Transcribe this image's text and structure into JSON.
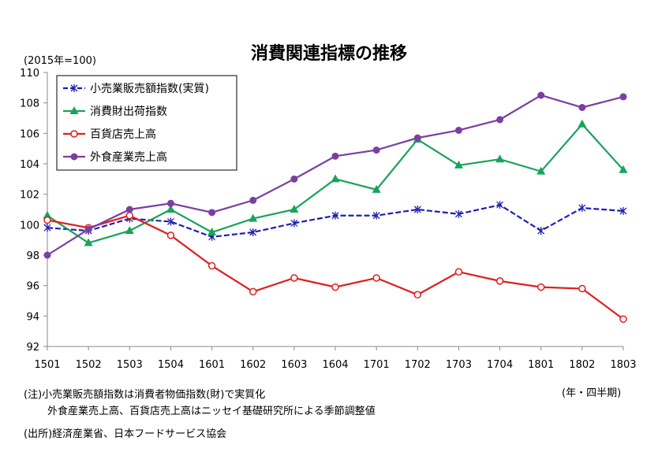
{
  "chart_data": {
    "type": "line",
    "title": "消費関連指標の推移",
    "unit_label": "(2015年=100)",
    "xlabel": "(年・四半期)",
    "ylabel": "",
    "ylim": [
      92,
      110
    ],
    "ytick_step": 2,
    "categories": [
      "1501",
      "1502",
      "1503",
      "1504",
      "1601",
      "1602",
      "1603",
      "1604",
      "1701",
      "1702",
      "1703",
      "1704",
      "1801",
      "1802",
      "1803"
    ],
    "grid": false,
    "legend_position": "top-left",
    "series": [
      {
        "name": "小売業販売額指数(実質)",
        "color": "#1f1fb4",
        "marker": "x",
        "values": [
          99.8,
          99.6,
          100.4,
          100.2,
          99.2,
          99.5,
          100.1,
          100.6,
          100.6,
          101.0,
          100.7,
          101.3,
          99.6,
          101.1,
          100.9
        ]
      },
      {
        "name": "消費財出荷指数",
        "color": "#1aa35a",
        "marker": "triangle",
        "values": [
          100.6,
          98.8,
          99.6,
          101.0,
          99.5,
          100.4,
          101.0,
          103.0,
          102.3,
          105.6,
          103.9,
          104.3,
          103.5,
          106.6,
          103.6
        ]
      },
      {
        "name": "百貨店売上高",
        "color": "#e01e1e",
        "marker": "circle-open",
        "values": [
          100.3,
          99.8,
          100.6,
          99.3,
          97.3,
          95.6,
          96.5,
          95.9,
          96.5,
          95.4,
          96.9,
          96.3,
          95.9,
          95.8,
          93.8
        ]
      },
      {
        "name": "外食産業売上高",
        "color": "#7b3fa1",
        "marker": "circle",
        "values": [
          98.0,
          99.7,
          101.0,
          101.4,
          100.8,
          101.6,
          103.0,
          104.5,
          104.9,
          105.7,
          106.2,
          106.9,
          108.5,
          107.7,
          108.4
        ]
      }
    ]
  },
  "notes": {
    "line1": "(注)小売業販売額指数は消費者物価指数(財)で実質化",
    "line2": "外食産業売上高、百貨店売上高はニッセイ基礎研究所による季節調整値",
    "source": "(出所)経済産業省、日本フードサービス協会"
  }
}
